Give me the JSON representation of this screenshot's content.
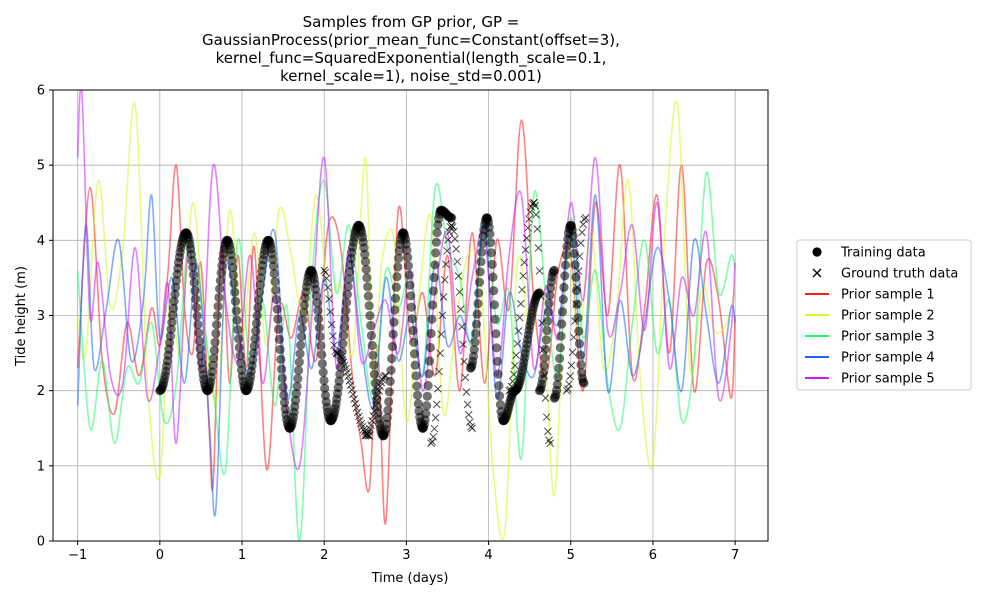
{
  "chart_data": {
    "type": "line",
    "title_lines": [
      "Samples from GP prior, GP =",
      "GaussianProcess(prior_mean_func=Constant(offset=3),",
      "kernel_func=SquaredExponential(length_scale=0.1,",
      "kernel_scale=1), noise_std=0.001)"
    ],
    "xlabel": "Time (days)",
    "ylabel": "Tide height (m)",
    "xlim": [
      -1.3,
      7.4
    ],
    "ylim": [
      0,
      6
    ],
    "xticks": [
      -1,
      0,
      1,
      2,
      3,
      4,
      5,
      6,
      7
    ],
    "xtick_labels": [
      "−1",
      "0",
      "1",
      "2",
      "3",
      "4",
      "5",
      "6",
      "7"
    ],
    "yticks": [
      0,
      1,
      2,
      3,
      4,
      5,
      6
    ],
    "ytick_labels": [
      "0",
      "1",
      "2",
      "3",
      "4",
      "5",
      "6"
    ],
    "grid": true,
    "legend_position": "right",
    "legend": [
      {
        "label": "Training data",
        "kind": "marker-dot",
        "color": "#000000"
      },
      {
        "label": "Ground truth data",
        "kind": "marker-x",
        "color": "#000000"
      },
      {
        "label": "Prior sample 1",
        "kind": "line",
        "color": "#ff1a1a"
      },
      {
        "label": "Prior sample 2",
        "kind": "line",
        "color": "#ccff1a"
      },
      {
        "label": "Prior sample 3",
        "kind": "line",
        "color": "#1aff66"
      },
      {
        "label": "Prior sample 4",
        "kind": "line",
        "color": "#1a66ff"
      },
      {
        "label": "Prior sample 5",
        "kind": "line",
        "color": "#cc1aff"
      }
    ],
    "series": [
      {
        "name": "Prior sample 1",
        "color": "#ff1a1a",
        "opacity": 0.55,
        "x": [
          -1.0,
          -0.85,
          -0.7,
          -0.55,
          -0.4,
          -0.25,
          -0.1,
          0.0,
          0.1,
          0.2,
          0.3,
          0.4,
          0.5,
          0.6,
          0.65,
          0.75,
          0.85,
          0.95,
          1.05,
          1.15,
          1.3,
          1.45,
          1.6,
          1.75,
          1.9,
          2.05,
          2.2,
          2.35,
          2.45,
          2.55,
          2.65,
          2.75,
          2.9,
          3.05,
          3.2,
          3.35,
          3.5,
          3.65,
          3.8,
          3.95,
          4.1,
          4.25,
          4.4,
          4.55,
          4.7,
          4.85,
          5.0,
          5.15,
          5.3,
          5.45,
          5.6,
          5.75,
          5.9,
          6.05,
          6.2,
          6.35,
          6.5,
          6.65,
          6.8,
          6.95,
          7.0
        ],
        "y": [
          2.3,
          4.7,
          2.4,
          1.7,
          2.9,
          2.2,
          3.1,
          2.6,
          3.6,
          5.0,
          3.1,
          2.5,
          3.7,
          1.5,
          0.8,
          3.9,
          2.1,
          3.8,
          2.3,
          3.9,
          0.95,
          3.1,
          2.7,
          3.3,
          2.4,
          4.2,
          3.9,
          2.1,
          1.3,
          0.7,
          2.6,
          0.25,
          4.4,
          2.7,
          3.3,
          2.2,
          3.8,
          2.0,
          4.1,
          2.1,
          4.0,
          3.1,
          5.6,
          3.2,
          2.2,
          3.6,
          3.8,
          2.0,
          4.5,
          3.0,
          5.0,
          2.2,
          3.1,
          4.6,
          2.5,
          5.0,
          2.0,
          3.7,
          3.2,
          1.9,
          3.0
        ]
      },
      {
        "name": "Prior sample 2",
        "color": "#ccff1a",
        "opacity": 0.55,
        "x": [
          -1.0,
          -0.9,
          -0.75,
          -0.6,
          -0.45,
          -0.3,
          -0.15,
          0.0,
          0.12,
          0.25,
          0.4,
          0.55,
          0.7,
          0.85,
          1.0,
          1.15,
          1.3,
          1.45,
          1.6,
          1.75,
          1.9,
          2.05,
          2.2,
          2.35,
          2.5,
          2.6,
          2.7,
          2.85,
          3.0,
          3.15,
          3.3,
          3.45,
          3.6,
          3.75,
          3.9,
          4.05,
          4.2,
          4.35,
          4.5,
          4.65,
          4.8,
          4.95,
          5.1,
          5.25,
          5.4,
          5.55,
          5.7,
          5.85,
          6.0,
          6.15,
          6.3,
          6.45,
          6.6,
          6.75,
          6.9,
          7.0
        ],
        "y": [
          3.0,
          2.5,
          4.8,
          3.1,
          3.9,
          5.8,
          2.1,
          0.85,
          3.2,
          2.5,
          4.5,
          2.8,
          1.9,
          4.4,
          2.7,
          4.1,
          2.6,
          4.4,
          3.8,
          3.0,
          4.6,
          3.3,
          3.4,
          2.5,
          5.1,
          2.1,
          3.7,
          4.0,
          1.6,
          3.2,
          4.3,
          1.7,
          2.9,
          3.8,
          3.5,
          1.0,
          0.15,
          3.7,
          2.8,
          3.3,
          0.6,
          3.9,
          2.7,
          4.1,
          2.3,
          3.0,
          4.8,
          2.1,
          1.05,
          4.2,
          5.8,
          2.3,
          3.4,
          2.8,
          2.9,
          3.4
        ]
      },
      {
        "name": "Prior sample 3",
        "color": "#1aff66",
        "opacity": 0.55,
        "x": [
          -1.0,
          -0.85,
          -0.7,
          -0.55,
          -0.4,
          -0.25,
          -0.1,
          0.05,
          0.2,
          0.35,
          0.5,
          0.65,
          0.8,
          0.95,
          1.1,
          1.25,
          1.4,
          1.55,
          1.7,
          1.85,
          2.0,
          2.15,
          2.3,
          2.45,
          2.6,
          2.75,
          2.9,
          3.05,
          3.2,
          3.35,
          3.5,
          3.65,
          3.8,
          3.95,
          4.1,
          4.25,
          4.4,
          4.55,
          4.7,
          4.85,
          5.0,
          5.15,
          5.3,
          5.45,
          5.6,
          5.75,
          5.9,
          6.05,
          6.2,
          6.35,
          6.5,
          6.65,
          6.8,
          6.95,
          7.0
        ],
        "y": [
          3.6,
          1.5,
          2.4,
          1.3,
          2.3,
          2.1,
          2.9,
          1.6,
          2.1,
          4.0,
          3.2,
          2.0,
          0.95,
          4.0,
          2.3,
          3.2,
          1.8,
          3.1,
          0.0,
          3.5,
          4.8,
          3.3,
          4.2,
          2.9,
          1.9,
          3.6,
          3.1,
          3.5,
          2.2,
          4.7,
          3.9,
          3.5,
          2.6,
          4.3,
          2.9,
          3.3,
          1.1,
          4.6,
          3.2,
          2.2,
          4.3,
          2.7,
          3.6,
          2.1,
          1.5,
          2.9,
          4.0,
          2.5,
          3.2,
          1.6,
          2.4,
          4.9,
          3.3,
          3.8,
          3.6
        ]
      },
      {
        "name": "Prior sample 4",
        "color": "#1a66ff",
        "opacity": 0.55,
        "x": [
          -1.0,
          -0.9,
          -0.8,
          -0.65,
          -0.5,
          -0.35,
          -0.2,
          -0.1,
          0.0,
          0.15,
          0.3,
          0.45,
          0.6,
          0.68,
          0.8,
          0.95,
          1.1,
          1.25,
          1.4,
          1.55,
          1.7,
          1.85,
          2.0,
          2.15,
          2.3,
          2.45,
          2.6,
          2.75,
          2.9,
          3.05,
          3.2,
          3.35,
          3.5,
          3.65,
          3.8,
          3.95,
          4.1,
          4.25,
          4.4,
          4.55,
          4.7,
          4.85,
          5.0,
          5.15,
          5.3,
          5.45,
          5.6,
          5.75,
          5.9,
          6.05,
          6.2,
          6.35,
          6.5,
          6.65,
          6.8,
          6.95,
          7.0
        ],
        "y": [
          1.8,
          4.2,
          2.3,
          3.1,
          4.0,
          2.4,
          3.2,
          4.6,
          2.7,
          3.5,
          2.1,
          3.7,
          1.6,
          0.4,
          3.6,
          2.8,
          2.2,
          3.3,
          4.1,
          1.9,
          3.0,
          2.3,
          3.5,
          2.5,
          3.8,
          2.6,
          1.8,
          3.5,
          2.4,
          3.0,
          2.2,
          3.7,
          2.6,
          3.0,
          2.7,
          4.2,
          1.9,
          3.3,
          2.5,
          2.2,
          3.1,
          2.9,
          4.1,
          2.4,
          4.6,
          2.0,
          3.2,
          2.2,
          2.9,
          3.9,
          3.2,
          2.0,
          4.0,
          3.0,
          2.1,
          3.1,
          2.9
        ]
      },
      {
        "name": "Prior sample 5",
        "color": "#cc1aff",
        "opacity": 0.55,
        "x": [
          -1.0,
          -0.95,
          -0.85,
          -0.75,
          -0.6,
          -0.45,
          -0.3,
          -0.15,
          0.0,
          0.1,
          0.2,
          0.35,
          0.5,
          0.65,
          0.8,
          0.95,
          1.1,
          1.25,
          1.4,
          1.55,
          1.7,
          1.85,
          2.0,
          2.15,
          2.3,
          2.45,
          2.6,
          2.75,
          2.9,
          3.05,
          3.2,
          3.35,
          3.5,
          3.65,
          3.8,
          3.95,
          4.1,
          4.25,
          4.4,
          4.55,
          4.7,
          4.85,
          5.0,
          5.15,
          5.3,
          5.45,
          5.6,
          5.75,
          5.9,
          6.05,
          6.2,
          6.35,
          6.5,
          6.65,
          6.8,
          6.95,
          7.0
        ],
        "y": [
          5.1,
          6.0,
          3.0,
          3.7,
          2.2,
          2.1,
          3.9,
          1.9,
          2.6,
          3.4,
          1.3,
          3.9,
          2.3,
          5.0,
          3.2,
          2.4,
          3.8,
          2.1,
          3.3,
          1.7,
          1.0,
          3.0,
          5.1,
          2.3,
          3.9,
          2.4,
          2.8,
          3.2,
          2.5,
          3.6,
          2.0,
          3.3,
          4.1,
          2.5,
          3.5,
          4.1,
          2.2,
          3.8,
          4.6,
          2.3,
          3.4,
          2.7,
          4.5,
          3.2,
          5.1,
          2.8,
          3.3,
          4.2,
          2.8,
          4.5,
          2.3,
          3.5,
          3.0,
          4.1,
          1.9,
          2.8,
          3.7
        ]
      }
    ],
    "training_data": {
      "segments": [
        [
          0.0,
          0.32
        ],
        [
          0.32,
          0.58
        ],
        [
          0.58,
          0.82
        ],
        [
          0.82,
          1.05
        ],
        [
          1.05,
          1.32
        ],
        [
          1.32,
          1.58
        ],
        [
          1.58,
          1.84
        ],
        [
          1.84,
          2.08
        ],
        [
          2.08,
          2.42
        ],
        [
          2.42,
          2.72
        ],
        [
          2.72,
          2.96
        ],
        [
          2.96,
          3.2
        ],
        [
          3.2,
          3.42
        ],
        [
          3.42,
          3.55
        ],
        [
          3.78,
          3.98
        ],
        [
          3.98,
          4.18
        ],
        [
          4.18,
          4.32
        ],
        [
          4.32,
          4.62
        ],
        [
          4.62,
          4.8
        ],
        [
          4.8,
          5.0
        ],
        [
          5.0,
          5.16
        ]
      ],
      "levels": [
        [
          2.0,
          4.1
        ],
        [
          4.1,
          2.0
        ],
        [
          2.0,
          4.0
        ],
        [
          4.0,
          2.0
        ],
        [
          2.0,
          4.0
        ],
        [
          4.0,
          1.5
        ],
        [
          1.5,
          3.6
        ],
        [
          3.6,
          1.6
        ],
        [
          1.6,
          4.2
        ],
        [
          4.2,
          1.4
        ],
        [
          1.4,
          4.1
        ],
        [
          4.1,
          1.5
        ],
        [
          1.5,
          4.4
        ],
        [
          4.4,
          4.3
        ],
        [
          2.3,
          4.3
        ],
        [
          4.3,
          1.6
        ],
        [
          1.6,
          2.0
        ],
        [
          2.0,
          3.3
        ],
        [
          2.0,
          3.6
        ],
        [
          1.9,
          4.2
        ],
        [
          4.2,
          2.1
        ]
      ]
    },
    "ground_truth_data": {
      "segments": [
        [
          2.0,
          2.15
        ],
        [
          2.15,
          2.55
        ],
        [
          2.5,
          2.75
        ],
        [
          3.3,
          3.55
        ],
        [
          3.55,
          3.8
        ],
        [
          4.25,
          4.55
        ],
        [
          4.55,
          4.75
        ],
        [
          4.95,
          5.18
        ]
      ],
      "levels": [
        [
          3.6,
          2.5
        ],
        [
          2.5,
          1.4
        ],
        [
          1.4,
          2.2
        ],
        [
          1.3,
          4.2
        ],
        [
          4.2,
          1.5
        ],
        [
          2.0,
          4.5
        ],
        [
          4.5,
          1.3
        ],
        [
          2.0,
          4.3
        ]
      ]
    }
  }
}
